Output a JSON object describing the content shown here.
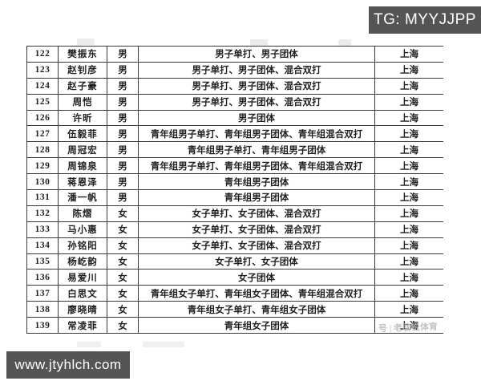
{
  "overlays": {
    "tg_badge": "TG: MYYJJPP",
    "site_badge": "www.jtyhlch.com",
    "photo_watermark": "号 | 老聊说体育"
  },
  "colors": {
    "badge_bg": "#545557",
    "badge_text": "#ffffff",
    "table_border": "#3a3a3a",
    "table_text": "#1f1f1f",
    "watermark_text": "#b9b9b9"
  },
  "table": {
    "rows": [
      {
        "no": "122",
        "name": "樊振东",
        "gender": "男",
        "events": "男子单打、男子团体",
        "region": "上海"
      },
      {
        "no": "123",
        "name": "赵钊彦",
        "gender": "男",
        "events": "男子单打、男子团体、混合双打",
        "region": "上海"
      },
      {
        "no": "124",
        "name": "赵子豪",
        "gender": "男",
        "events": "男子单打、男子团体、混合双打",
        "region": "上海"
      },
      {
        "no": "125",
        "name": "周恺",
        "gender": "男",
        "events": "男子单打、男子团体、混合双打",
        "region": "上海"
      },
      {
        "no": "126",
        "name": "许昕",
        "gender": "男",
        "events": "男子团体",
        "region": "上海"
      },
      {
        "no": "127",
        "name": "伍毅菲",
        "gender": "男",
        "events": "青年组男子单打、青年组男子团体、青年组混合双打",
        "region": "上海"
      },
      {
        "no": "128",
        "name": "周冠宏",
        "gender": "男",
        "events": "青年组男子单打、青年组男子团体",
        "region": "上海"
      },
      {
        "no": "129",
        "name": "周锦泉",
        "gender": "男",
        "events": "青年组男子单打、青年组男子团体、青年组混合双打",
        "region": "上海"
      },
      {
        "no": "130",
        "name": "蒋恩泽",
        "gender": "男",
        "events": "青年组男子团体",
        "region": "上海"
      },
      {
        "no": "131",
        "name": "潘一帆",
        "gender": "男",
        "events": "青年组男子团体",
        "region": "上海"
      },
      {
        "no": "132",
        "name": "陈熠",
        "gender": "女",
        "events": "女子单打、女子团体、混合双打",
        "region": "上海"
      },
      {
        "no": "133",
        "name": "马小惠",
        "gender": "女",
        "events": "女子单打、女子团体、混合双打",
        "region": "上海"
      },
      {
        "no": "134",
        "name": "孙铭阳",
        "gender": "女",
        "events": "女子单打、女子团体、混合双打",
        "region": "上海"
      },
      {
        "no": "135",
        "name": "杨屹韵",
        "gender": "女",
        "events": "女子单打、女子团体",
        "region": "上海"
      },
      {
        "no": "136",
        "name": "易爱川",
        "gender": "女",
        "events": "女子团体",
        "region": "上海"
      },
      {
        "no": "137",
        "name": "白思文",
        "gender": "女",
        "events": "青年组女子单打、青年组女子团体、青年组混合双打",
        "region": "上海"
      },
      {
        "no": "138",
        "name": "廖晓晴",
        "gender": "女",
        "events": "青年组女子单打、青年组女子团体",
        "region": "上海"
      },
      {
        "no": "139",
        "name": "常凌菲",
        "gender": "女",
        "events": "青年组女子团体",
        "region": "上海"
      }
    ]
  }
}
